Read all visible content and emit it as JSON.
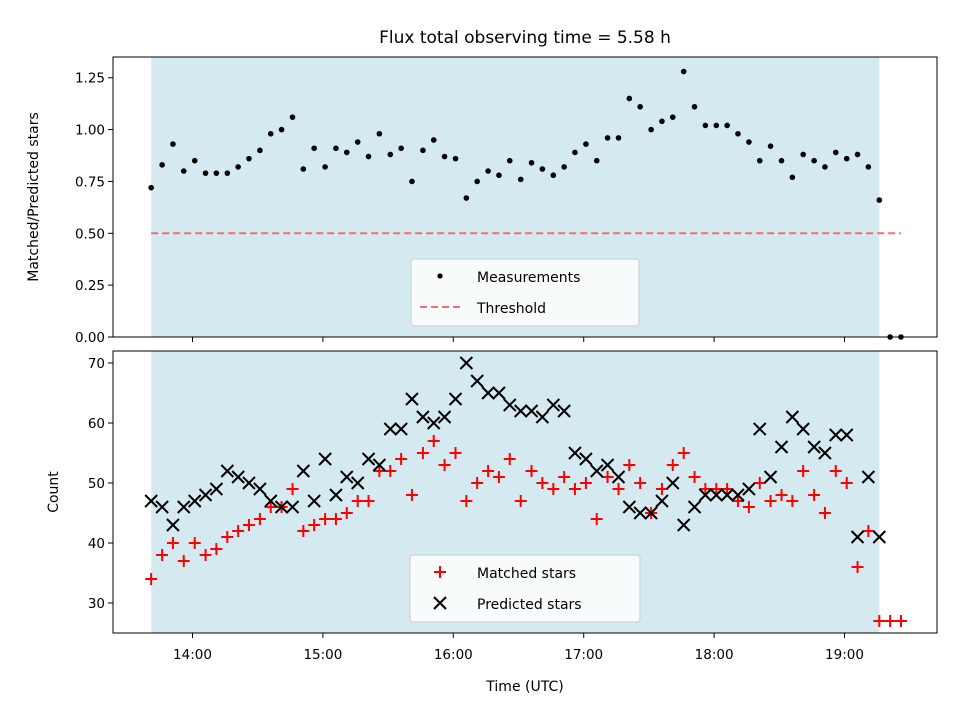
{
  "chart_data": {
    "title": "Flux total observing time = 5.58 h",
    "xlabel": "Time (UTC)",
    "x_ticks": [
      "14:00",
      "15:00",
      "16:00",
      "17:00",
      "18:00",
      "19:00"
    ],
    "shaded_region": [
      13.683,
      19.267
    ],
    "shaded_color": "#d4eaf0",
    "panels": [
      {
        "type": "scatter",
        "ylabel": "Matched/Predicted stars",
        "ylim": [
          0.0,
          1.35
        ],
        "yticks": [
          "0.00",
          "0.25",
          "0.50",
          "0.75",
          "1.00",
          "1.25"
        ],
        "legend_position": "lower-center",
        "series": [
          {
            "name": "Measurements",
            "marker": "dot",
            "color": "#000000",
            "x": [
              13.683,
              13.767,
              13.85,
              13.933,
              14.017,
              14.1,
              14.183,
              14.267,
              14.35,
              14.433,
              14.517,
              14.6,
              14.683,
              14.767,
              14.85,
              14.933,
              15.017,
              15.1,
              15.183,
              15.267,
              15.35,
              15.433,
              15.517,
              15.6,
              15.683,
              15.767,
              15.85,
              15.933,
              16.017,
              16.1,
              16.183,
              16.267,
              16.35,
              16.433,
              16.517,
              16.6,
              16.683,
              16.767,
              16.85,
              16.933,
              17.017,
              17.1,
              17.183,
              17.267,
              17.35,
              17.433,
              17.517,
              17.6,
              17.683,
              17.767,
              17.85,
              17.933,
              18.017,
              18.1,
              18.183,
              18.267,
              18.35,
              18.433,
              18.517,
              18.6,
              18.683,
              18.767,
              18.85,
              18.933,
              19.017,
              19.1,
              19.183,
              19.267,
              19.35,
              19.433
            ],
            "y": [
              0.72,
              0.83,
              0.93,
              0.8,
              0.85,
              0.79,
              0.79,
              0.79,
              0.82,
              0.86,
              0.9,
              0.98,
              1.0,
              1.06,
              0.81,
              0.91,
              0.82,
              0.91,
              0.89,
              0.94,
              0.87,
              0.98,
              0.88,
              0.91,
              0.75,
              0.9,
              0.95,
              0.87,
              0.86,
              0.67,
              0.75,
              0.8,
              0.78,
              0.85,
              0.76,
              0.84,
              0.81,
              0.78,
              0.82,
              0.89,
              0.93,
              0.85,
              0.96,
              0.96,
              1.15,
              1.11,
              1.0,
              1.04,
              1.06,
              1.28,
              1.11,
              1.02,
              1.02,
              1.02,
              0.98,
              0.94,
              0.85,
              0.92,
              0.85,
              0.77,
              0.88,
              0.85,
              0.82,
              0.89,
              0.86,
              0.88,
              0.82,
              0.66,
              0.0,
              0.0
            ]
          },
          {
            "name": "Threshold",
            "marker": "dashed-line",
            "color": "#f07070",
            "x": [
              13.683,
              19.433
            ],
            "y": [
              0.5,
              0.5
            ]
          }
        ]
      },
      {
        "type": "scatter",
        "ylabel": "Count",
        "ylim": [
          25,
          72
        ],
        "yticks": [
          "30",
          "40",
          "50",
          "60",
          "70"
        ],
        "legend_position": "lower-center",
        "series": [
          {
            "name": "Matched stars",
            "marker": "plus",
            "color": "#ff0000",
            "x": [
              13.683,
              13.767,
              13.85,
              13.933,
              14.017,
              14.1,
              14.183,
              14.267,
              14.35,
              14.433,
              14.517,
              14.6,
              14.683,
              14.767,
              14.85,
              14.933,
              15.017,
              15.1,
              15.183,
              15.267,
              15.35,
              15.433,
              15.517,
              15.6,
              15.683,
              15.767,
              15.85,
              15.933,
              16.017,
              16.1,
              16.183,
              16.267,
              16.35,
              16.433,
              16.517,
              16.6,
              16.683,
              16.767,
              16.85,
              16.933,
              17.017,
              17.1,
              17.183,
              17.267,
              17.35,
              17.433,
              17.517,
              17.6,
              17.683,
              17.767,
              17.85,
              17.933,
              18.017,
              18.1,
              18.183,
              18.267,
              18.35,
              18.433,
              18.517,
              18.6,
              18.683,
              18.767,
              18.85,
              18.933,
              19.017,
              19.1,
              19.183,
              19.267,
              19.35,
              19.433
            ],
            "y": [
              34,
              38,
              40,
              37,
              40,
              38,
              39,
              41,
              42,
              43,
              44,
              46,
              46,
              49,
              42,
              43,
              44,
              44,
              45,
              47,
              47,
              52,
              52,
              54,
              48,
              55,
              57,
              53,
              55,
              47,
              50,
              52,
              51,
              54,
              47,
              52,
              50,
              49,
              51,
              49,
              50,
              44,
              51,
              49,
              53,
              50,
              45,
              49,
              53,
              55,
              51,
              49,
              49,
              49,
              47,
              46,
              50,
              47,
              48,
              47,
              52,
              48,
              45,
              52,
              50,
              36,
              42,
              27,
              27,
              27
            ]
          },
          {
            "name": "Predicted stars",
            "marker": "cross",
            "color": "#000000",
            "x": [
              13.683,
              13.767,
              13.85,
              13.933,
              14.017,
              14.1,
              14.183,
              14.267,
              14.35,
              14.433,
              14.517,
              14.6,
              14.683,
              14.767,
              14.85,
              14.933,
              15.017,
              15.1,
              15.183,
              15.267,
              15.35,
              15.433,
              15.517,
              15.6,
              15.683,
              15.767,
              15.85,
              15.933,
              16.017,
              16.1,
              16.183,
              16.267,
              16.35,
              16.433,
              16.517,
              16.6,
              16.683,
              16.767,
              16.85,
              16.933,
              17.017,
              17.1,
              17.183,
              17.267,
              17.35,
              17.433,
              17.517,
              17.6,
              17.683,
              17.767,
              17.85,
              17.933,
              18.017,
              18.1,
              18.183,
              18.267,
              18.35,
              18.433,
              18.517,
              18.6,
              18.683,
              18.767,
              18.85,
              18.933,
              19.017,
              19.1,
              19.183,
              19.267
            ],
            "y": [
              47,
              46,
              43,
              46,
              47,
              48,
              49,
              52,
              51,
              50,
              49,
              47,
              46,
              46,
              52,
              47,
              54,
              48,
              51,
              50,
              54,
              53,
              59,
              59,
              64,
              61,
              60,
              61,
              64,
              70,
              67,
              65,
              65,
              63,
              62,
              62,
              61,
              63,
              62,
              55,
              54,
              52,
              53,
              51,
              46,
              45,
              45,
              47,
              50,
              43,
              46,
              48,
              48,
              48,
              48,
              49,
              59,
              51,
              56,
              61,
              59,
              56,
              55,
              58,
              58,
              41,
              51,
              41
            ]
          }
        ]
      }
    ]
  }
}
